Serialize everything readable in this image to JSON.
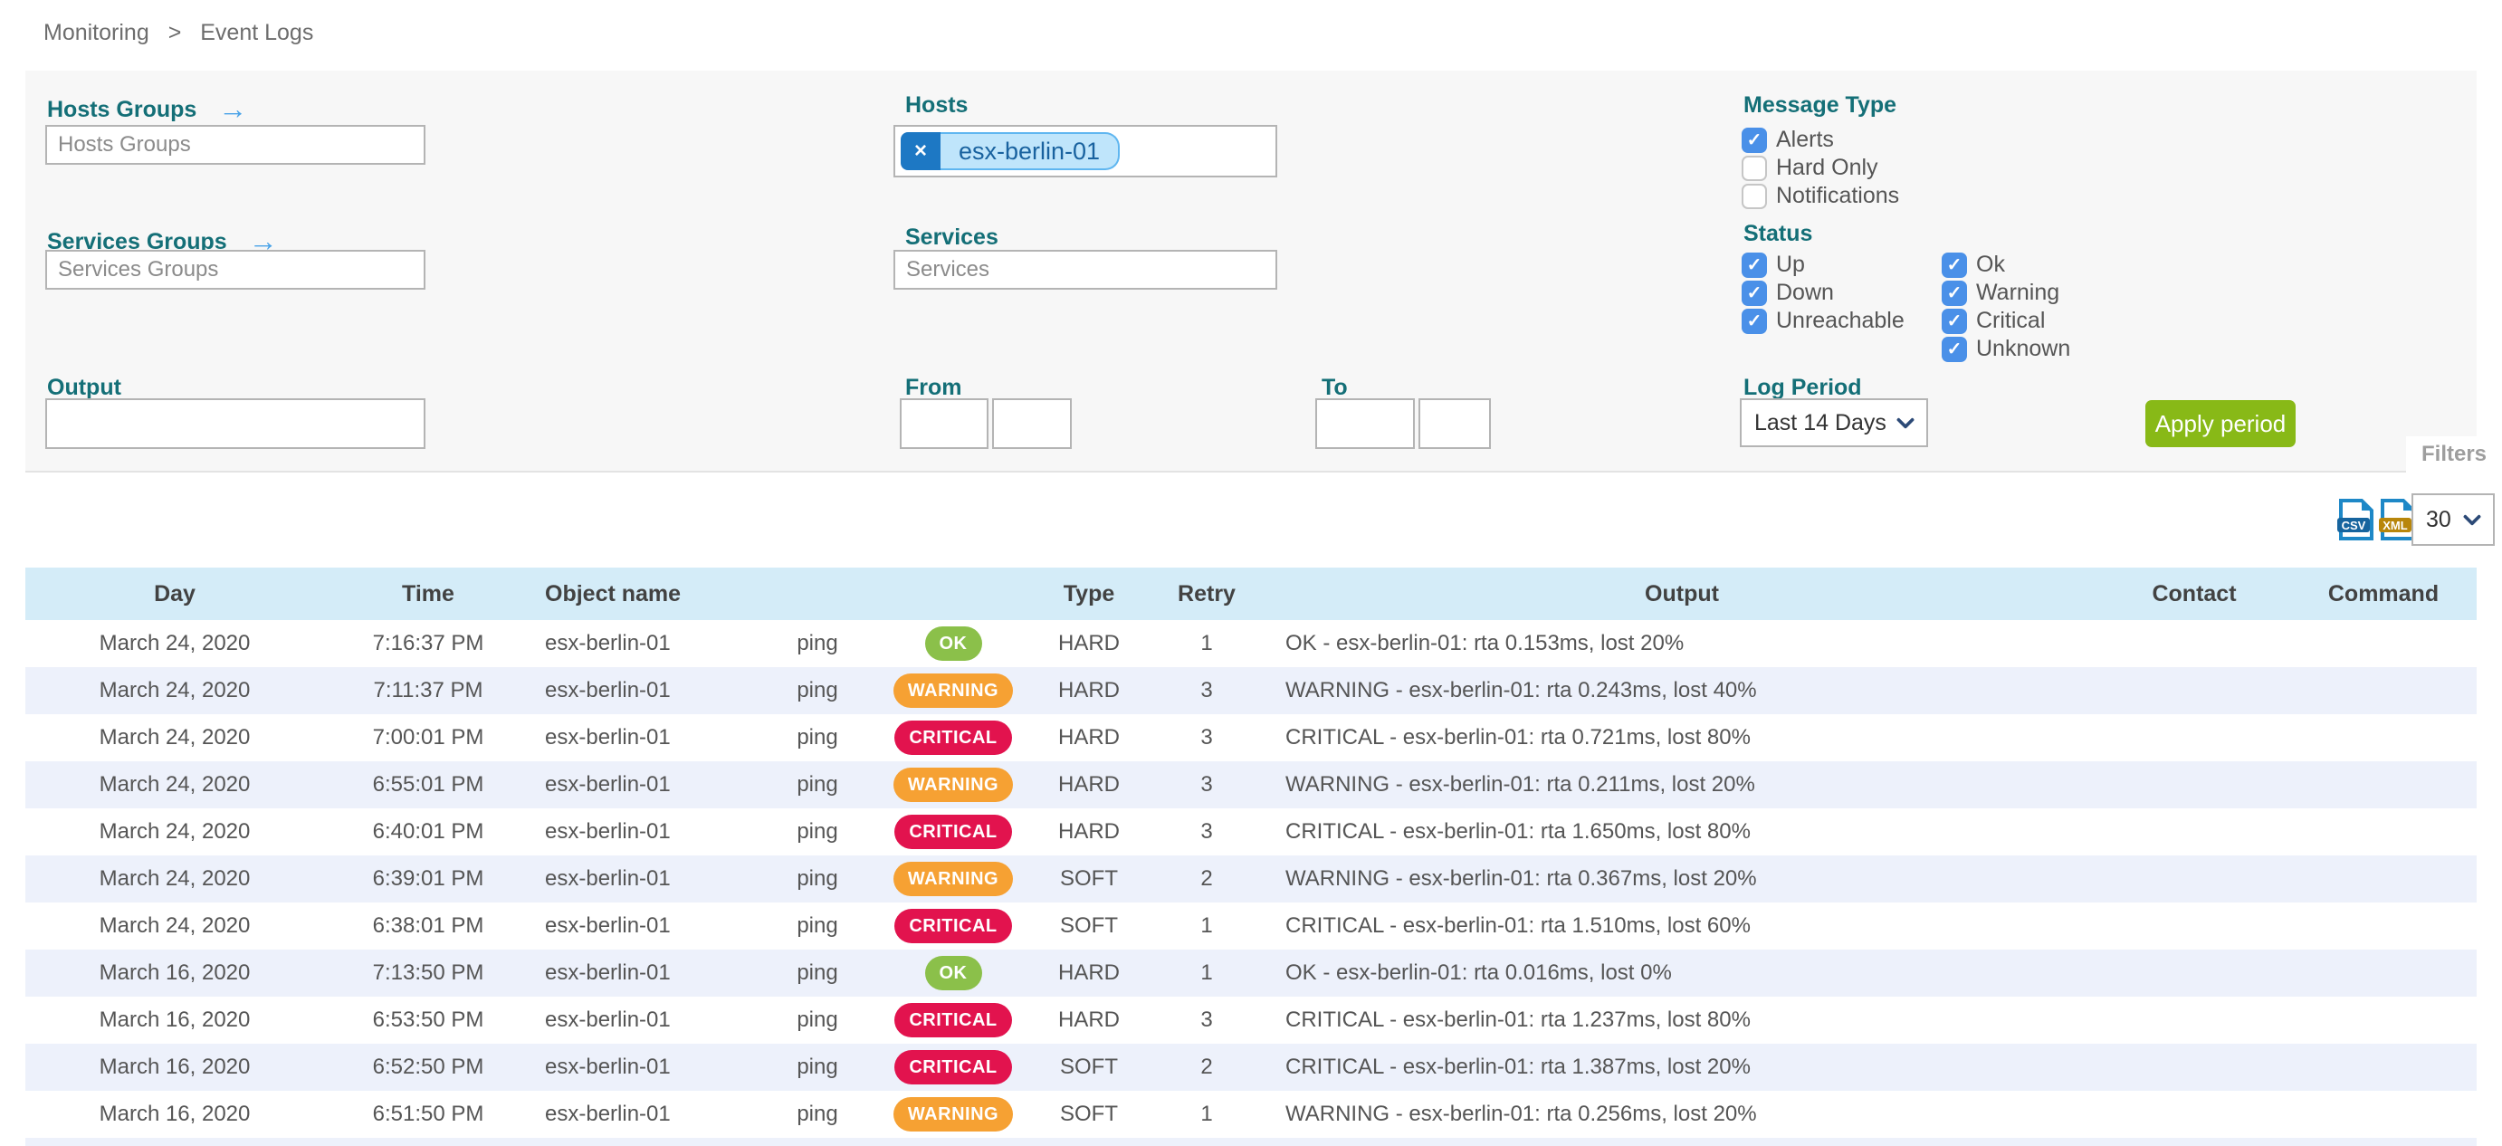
{
  "breadcrumb": {
    "items": [
      "Monitoring",
      "Event Logs"
    ],
    "separator": ">"
  },
  "filters": {
    "panel_tab_label": "Filters",
    "hosts_groups": {
      "label": "Hosts Groups",
      "placeholder": "Hosts Groups",
      "value": ""
    },
    "services_groups": {
      "label": "Services Groups",
      "placeholder": "Services Groups",
      "value": ""
    },
    "hosts": {
      "label": "Hosts",
      "tags": [
        "esx-berlin-01"
      ],
      "remove_tag_glyph": "×"
    },
    "services": {
      "label": "Services",
      "placeholder": "Services",
      "value": ""
    },
    "output": {
      "label": "Output",
      "value": ""
    },
    "from": {
      "label": "From",
      "date_value": "",
      "time_value": ""
    },
    "to": {
      "label": "To",
      "date_value": "",
      "time_value": ""
    },
    "message_type": {
      "label": "Message Type",
      "options": [
        {
          "label": "Alerts",
          "checked": true
        },
        {
          "label": "Hard Only",
          "checked": false
        },
        {
          "label": "Notifications",
          "checked": false
        }
      ]
    },
    "status": {
      "label": "Status",
      "col1": [
        {
          "label": "Up",
          "checked": true
        },
        {
          "label": "Down",
          "checked": true
        },
        {
          "label": "Unreachable",
          "checked": true
        }
      ],
      "col2": [
        {
          "label": "Ok",
          "checked": true
        },
        {
          "label": "Warning",
          "checked": true
        },
        {
          "label": "Critical",
          "checked": true
        },
        {
          "label": "Unknown",
          "checked": true
        }
      ]
    },
    "log_period": {
      "label": "Log Period",
      "selected": "Last 14 Days"
    },
    "apply_button_label": "Apply period"
  },
  "toolbar": {
    "export_csv_label": "CSV",
    "export_xml_label": "XML",
    "page_size": "30"
  },
  "table": {
    "columns": [
      "Day",
      "Time",
      "Object name",
      "",
      "",
      "Type",
      "Retry",
      "Output",
      "Contact",
      "Command"
    ],
    "rows": [
      {
        "day": "March 24, 2020",
        "time": "7:16:37 PM",
        "object": "esx-berlin-01",
        "service": "ping",
        "status": "OK",
        "type": "HARD",
        "retry": "1",
        "output": "OK - esx-berlin-01: rta 0.153ms, lost 20%",
        "contact": "",
        "command": ""
      },
      {
        "day": "March 24, 2020",
        "time": "7:11:37 PM",
        "object": "esx-berlin-01",
        "service": "ping",
        "status": "WARNING",
        "type": "HARD",
        "retry": "3",
        "output": "WARNING - esx-berlin-01: rta 0.243ms, lost 40%",
        "contact": "",
        "command": ""
      },
      {
        "day": "March 24, 2020",
        "time": "7:00:01 PM",
        "object": "esx-berlin-01",
        "service": "ping",
        "status": "CRITICAL",
        "type": "HARD",
        "retry": "3",
        "output": "CRITICAL - esx-berlin-01: rta 0.721ms, lost 80%",
        "contact": "",
        "command": ""
      },
      {
        "day": "March 24, 2020",
        "time": "6:55:01 PM",
        "object": "esx-berlin-01",
        "service": "ping",
        "status": "WARNING",
        "type": "HARD",
        "retry": "3",
        "output": "WARNING - esx-berlin-01: rta 0.211ms, lost 20%",
        "contact": "",
        "command": ""
      },
      {
        "day": "March 24, 2020",
        "time": "6:40:01 PM",
        "object": "esx-berlin-01",
        "service": "ping",
        "status": "CRITICAL",
        "type": "HARD",
        "retry": "3",
        "output": "CRITICAL - esx-berlin-01: rta 1.650ms, lost 80%",
        "contact": "",
        "command": ""
      },
      {
        "day": "March 24, 2020",
        "time": "6:39:01 PM",
        "object": "esx-berlin-01",
        "service": "ping",
        "status": "WARNING",
        "type": "SOFT",
        "retry": "2",
        "output": "WARNING - esx-berlin-01: rta 0.367ms, lost 20%",
        "contact": "",
        "command": ""
      },
      {
        "day": "March 24, 2020",
        "time": "6:38:01 PM",
        "object": "esx-berlin-01",
        "service": "ping",
        "status": "CRITICAL",
        "type": "SOFT",
        "retry": "1",
        "output": "CRITICAL - esx-berlin-01: rta 1.510ms, lost 60%",
        "contact": "",
        "command": ""
      },
      {
        "day": "March 16, 2020",
        "time": "7:13:50 PM",
        "object": "esx-berlin-01",
        "service": "ping",
        "status": "OK",
        "type": "HARD",
        "retry": "1",
        "output": "OK - esx-berlin-01: rta 0.016ms, lost 0%",
        "contact": "",
        "command": ""
      },
      {
        "day": "March 16, 2020",
        "time": "6:53:50 PM",
        "object": "esx-berlin-01",
        "service": "ping",
        "status": "CRITICAL",
        "type": "HARD",
        "retry": "3",
        "output": "CRITICAL - esx-berlin-01: rta 1.237ms, lost 80%",
        "contact": "",
        "command": ""
      },
      {
        "day": "March 16, 2020",
        "time": "6:52:50 PM",
        "object": "esx-berlin-01",
        "service": "ping",
        "status": "CRITICAL",
        "type": "SOFT",
        "retry": "2",
        "output": "CRITICAL - esx-berlin-01: rta 1.387ms, lost 20%",
        "contact": "",
        "command": ""
      },
      {
        "day": "March 16, 2020",
        "time": "6:51:50 PM",
        "object": "esx-berlin-01",
        "service": "ping",
        "status": "WARNING",
        "type": "SOFT",
        "retry": "1",
        "output": "WARNING - esx-berlin-01: rta 0.256ms, lost 20%",
        "contact": "",
        "command": ""
      }
    ]
  },
  "colors": {
    "label_teal": "#146f77",
    "arrow_blue": "#4aa3e8",
    "checkbox_blue": "#4a90e8",
    "apply_green": "#88b917",
    "badge_ok": "#8bc04a",
    "badge_warning": "#f6a133",
    "badge_critical": "#e2134e",
    "table_header_bg": "#d4ecf8",
    "row_alt_bg": "#edf1fb",
    "panel_bg": "#f7f7f7",
    "tag_bg": "#bfe5fb",
    "tag_close_bg": "#1d78c4",
    "tag_text": "#19629f"
  }
}
